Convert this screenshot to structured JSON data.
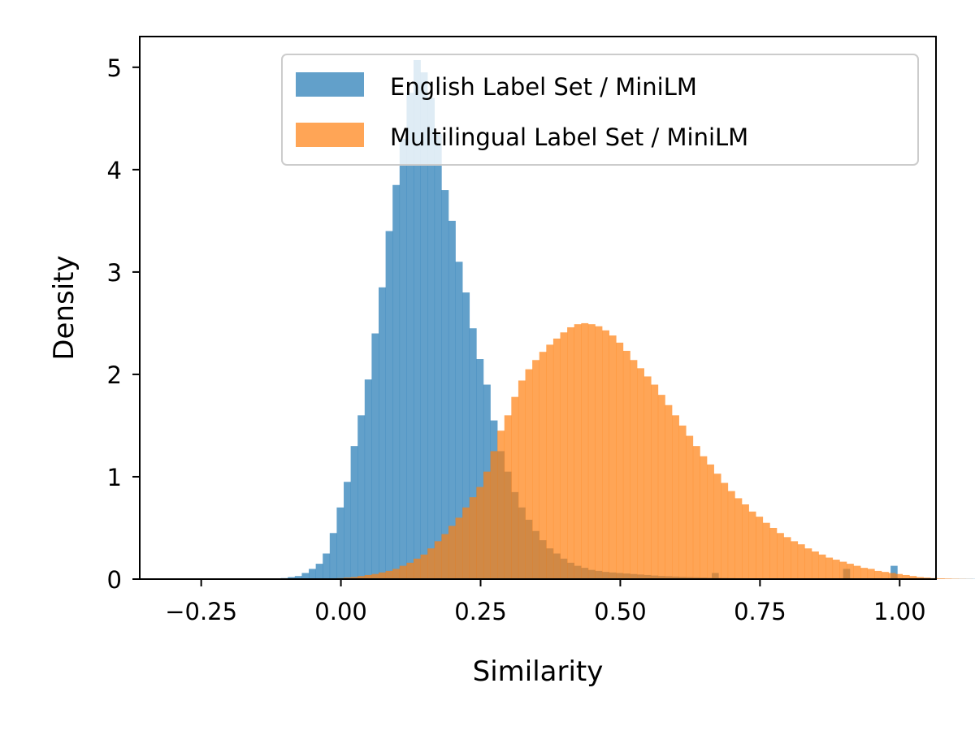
{
  "chart_data": {
    "type": "histogram",
    "title": "",
    "xlabel": "Similarity",
    "ylabel": "Density",
    "xlim": [
      -0.36,
      1.065
    ],
    "ylim": [
      0,
      5.3
    ],
    "x_ticks": [
      -0.25,
      0.0,
      0.25,
      0.5,
      0.75,
      1.0
    ],
    "x_tick_labels": [
      "−0.25",
      "0.00",
      "0.25",
      "0.50",
      "0.75",
      "1.00"
    ],
    "y_ticks": [
      0,
      1,
      2,
      3,
      4,
      5
    ],
    "y_tick_labels": [
      "0",
      "1",
      "2",
      "3",
      "4",
      "5"
    ],
    "grid": false,
    "legend_position": "top-right",
    "series": [
      {
        "name": "English Label Set / MiniLM",
        "color": "#1f77b4",
        "alpha": 0.7,
        "bin_width": 0.0125,
        "bin_start": -0.1075,
        "values": [
          0.01,
          0.02,
          0.03,
          0.06,
          0.1,
          0.15,
          0.25,
          0.45,
          0.7,
          0.95,
          1.3,
          1.6,
          1.95,
          2.4,
          2.85,
          3.4,
          3.85,
          4.3,
          4.75,
          5.07,
          4.95,
          4.7,
          4.35,
          3.8,
          3.5,
          3.1,
          2.8,
          2.45,
          2.15,
          1.9,
          1.55,
          1.25,
          1.05,
          0.85,
          0.7,
          0.58,
          0.47,
          0.38,
          0.3,
          0.25,
          0.2,
          0.16,
          0.13,
          0.11,
          0.09,
          0.08,
          0.07,
          0.065,
          0.06,
          0.055,
          0.05,
          0.045,
          0.04,
          0.035,
          0.03,
          0.028,
          0.025,
          0.022,
          0.02,
          0.018,
          0.016,
          0.014,
          0.012,
          0.011,
          0.01,
          0.009,
          0.008,
          0.007,
          0.006,
          0.006,
          0.005,
          0.005,
          0.004,
          0.004,
          0.003,
          0.003,
          0.003,
          0.002,
          0.002,
          0.002,
          0.002,
          0.002,
          0.002,
          0.002,
          0.002,
          0.002,
          0.002,
          0.002,
          0.002,
          0.002,
          0.002,
          0.002,
          0.002,
          0.002,
          0.002,
          0.002,
          0.002,
          0.002,
          0.002,
          0.002,
          0.002,
          0.002,
          0.002,
          0.002,
          0.002,
          0.002,
          0.002,
          0.002,
          0.002
        ],
        "extra_bars": [
          {
            "x": 0.67,
            "value": 0.06
          },
          {
            "x": 0.905,
            "value": 0.1
          },
          {
            "x": 0.99,
            "value": 0.13
          }
        ]
      },
      {
        "name": "Multilingual Label Set / MiniLM",
        "color": "#ff7f0e",
        "alpha": 0.7,
        "bin_width": 0.0125,
        "bin_start": -0.1075,
        "values": [
          0.0,
          0.0,
          0.0,
          0.0,
          0.0,
          0.002,
          0.004,
          0.007,
          0.01,
          0.015,
          0.02,
          0.03,
          0.04,
          0.05,
          0.065,
          0.08,
          0.1,
          0.13,
          0.16,
          0.2,
          0.24,
          0.3,
          0.37,
          0.44,
          0.52,
          0.6,
          0.7,
          0.8,
          0.9,
          1.05,
          1.25,
          1.45,
          1.6,
          1.78,
          1.94,
          2.05,
          2.14,
          2.22,
          2.29,
          2.35,
          2.41,
          2.46,
          2.49,
          2.5,
          2.49,
          2.47,
          2.43,
          2.38,
          2.31,
          2.23,
          2.14,
          2.06,
          1.98,
          1.9,
          1.8,
          1.7,
          1.6,
          1.5,
          1.4,
          1.3,
          1.2,
          1.12,
          1.03,
          0.94,
          0.86,
          0.79,
          0.73,
          0.66,
          0.61,
          0.55,
          0.5,
          0.45,
          0.41,
          0.37,
          0.34,
          0.3,
          0.27,
          0.24,
          0.21,
          0.19,
          0.17,
          0.15,
          0.13,
          0.11,
          0.1,
          0.08,
          0.07,
          0.06,
          0.05,
          0.04,
          0.03,
          0.02,
          0.015,
          0.01,
          0.007,
          0.005,
          0.003,
          0.002,
          0.001,
          0.0,
          0.0,
          0.0,
          0.0,
          0.0,
          0.0,
          0.0,
          0.0,
          0.0,
          0.0,
          0.0
        ]
      }
    ]
  }
}
